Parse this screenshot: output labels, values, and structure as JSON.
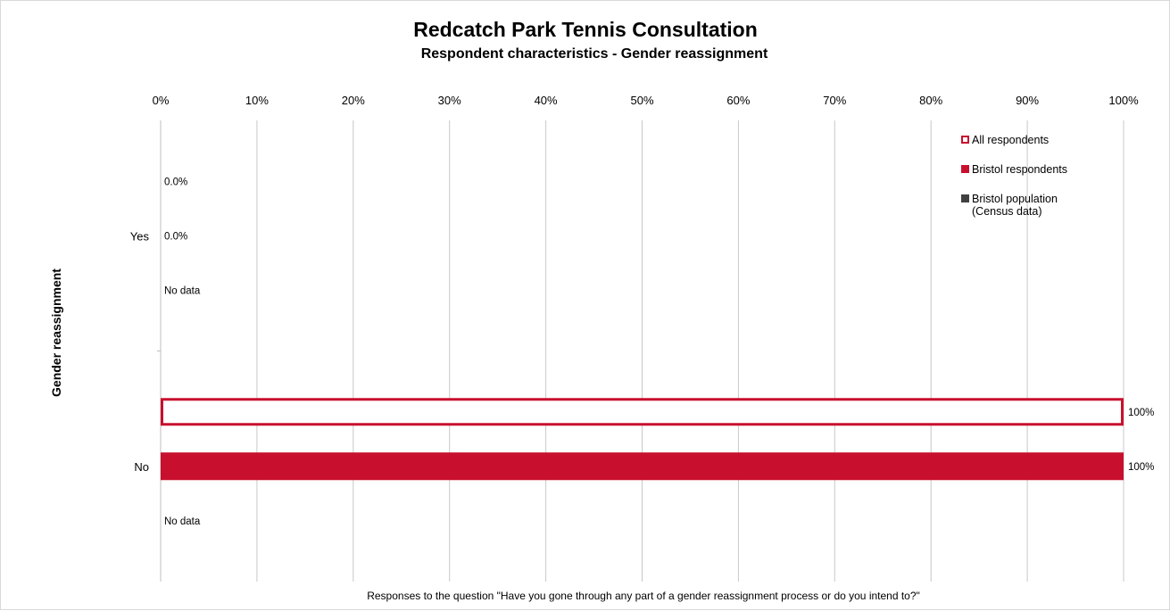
{
  "chart_data": {
    "type": "bar",
    "orientation": "horizontal",
    "title": "Redcatch Park Tennis Consultation",
    "subtitle": "Respondent characteristics - Gender reassignment",
    "ylabel": "Gender reassignment",
    "xlabel": "Responses to the question \"Have you gone through any part of a gender reassignment process or do you intend to?\"",
    "xlim": [
      0,
      100
    ],
    "x_ticks": [
      "0%",
      "10%",
      "20%",
      "30%",
      "40%",
      "50%",
      "60%",
      "70%",
      "80%",
      "90%",
      "100%"
    ],
    "x_axis_position": "top",
    "grid": true,
    "legend_position": "top-right",
    "categories": [
      "Yes",
      "No"
    ],
    "series": [
      {
        "name": "All respondents",
        "color": "#c8102e",
        "style": "outline",
        "values": [
          0,
          100
        ],
        "labels": [
          "0.0%",
          "100%"
        ]
      },
      {
        "name": "Bristol respondents",
        "color": "#c8102e",
        "style": "solid",
        "values": [
          0,
          100
        ],
        "labels": [
          "0.0%",
          "100%"
        ]
      },
      {
        "name": "Bristol population (Census data)",
        "legend_lines": [
          "Bristol population",
          "(Census data)"
        ],
        "color": "#404040",
        "style": "solid",
        "values": [
          null,
          null
        ],
        "labels": [
          "No data",
          "No data"
        ]
      }
    ]
  }
}
